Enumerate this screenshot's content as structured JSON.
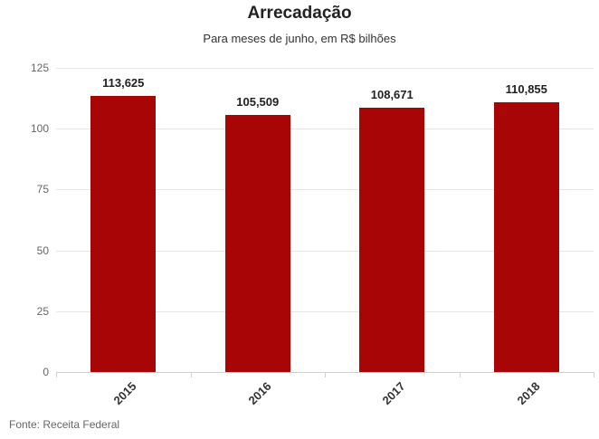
{
  "chart_data": {
    "type": "bar",
    "title": "Arrecadação",
    "subtitle": "Para meses de junho, em R$ bilhões",
    "categories": [
      "2015",
      "2016",
      "2017",
      "2018"
    ],
    "values": [
      113.625,
      105.509,
      108.671,
      110.855
    ],
    "value_labels": [
      "113,625",
      "105,509",
      "108,671",
      "110,855"
    ],
    "ylim": [
      0,
      125
    ],
    "yticks": [
      0,
      25,
      50,
      75,
      100,
      125
    ],
    "grid": true,
    "legend": "none",
    "bar_color": "#a80606",
    "grid_color": "#e6e6e6",
    "axis_color": "#ccd1d9",
    "source": "Fonte: Receita Federal"
  }
}
